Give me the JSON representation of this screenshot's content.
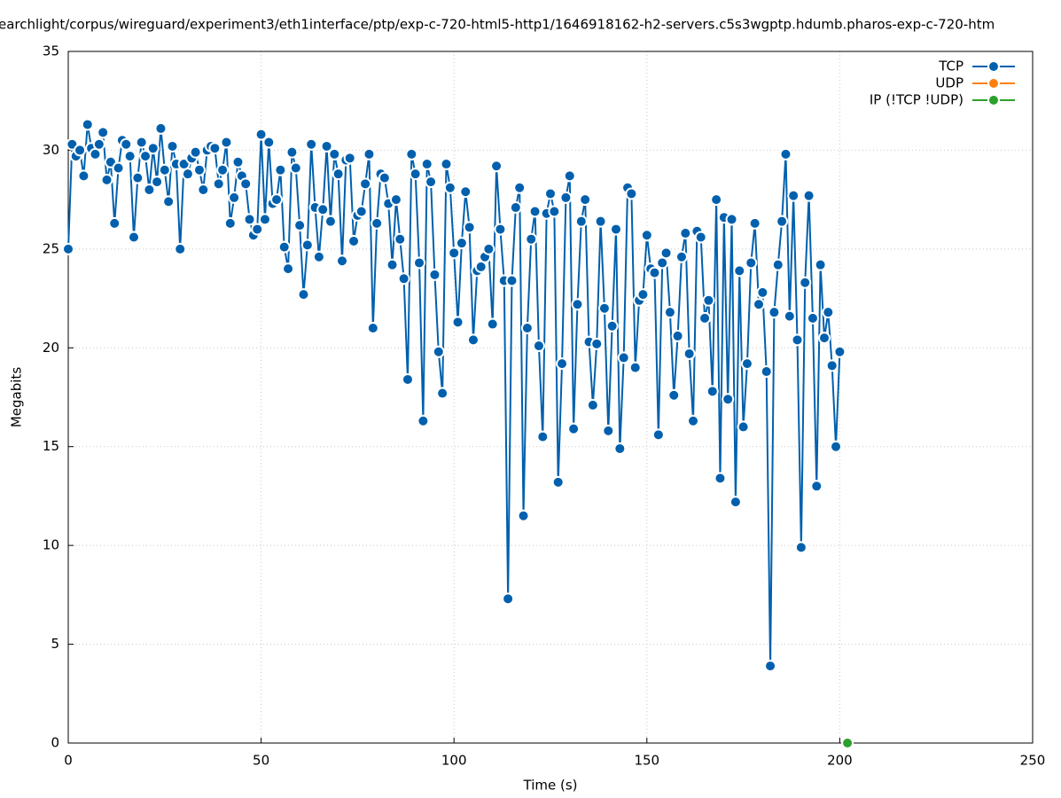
{
  "chart_data": {
    "type": "line",
    "title": "earchlight/corpus/wireguard/experiment3/eth1interface/ptp/exp-c-720-html5-http1/1646918162-h2-servers.c5s3wgptp.hdumb.pharos-exp-c-720-htm",
    "xlabel": "Time (s)",
    "ylabel": "Megabits",
    "xlim": [
      0,
      250
    ],
    "xticks": [
      0,
      50,
      100,
      150,
      200,
      250
    ],
    "ylim": [
      0,
      35
    ],
    "yticks": [
      0,
      5,
      10,
      15,
      20,
      25,
      30,
      35
    ],
    "grid": true,
    "legend": "top-right",
    "series": [
      {
        "name": "TCP",
        "color": "#0060ad",
        "x": [
          0,
          1,
          2,
          3,
          4,
          5,
          6,
          7,
          8,
          9,
          10,
          11,
          12,
          13,
          14,
          15,
          16,
          17,
          18,
          19,
          20,
          21,
          22,
          23,
          24,
          25,
          26,
          27,
          28,
          29,
          30,
          31,
          32,
          33,
          34,
          35,
          36,
          37,
          38,
          39,
          40,
          41,
          42,
          43,
          44,
          45,
          46,
          47,
          48,
          49,
          50,
          51,
          52,
          53,
          54,
          55,
          56,
          57,
          58,
          59,
          60,
          61,
          62,
          63,
          64,
          65,
          66,
          67,
          68,
          69,
          70,
          71,
          72,
          73,
          74,
          75,
          76,
          77,
          78,
          79,
          80,
          81,
          82,
          83,
          84,
          85,
          86,
          87,
          88,
          89,
          90,
          91,
          92,
          93,
          94,
          95,
          96,
          97,
          98,
          99,
          100,
          101,
          102,
          103,
          104,
          105,
          106,
          107,
          108,
          109,
          110,
          111,
          112,
          113,
          114,
          115,
          116,
          117,
          118,
          119,
          120,
          121,
          122,
          123,
          124,
          125,
          126,
          127,
          128,
          129,
          130,
          131,
          132,
          133,
          134,
          135,
          136,
          137,
          138,
          139,
          140,
          141,
          142,
          143,
          144,
          145,
          146,
          147,
          148,
          149,
          150,
          151,
          152,
          153,
          154,
          155,
          156,
          157,
          158,
          159,
          160,
          161,
          162,
          163,
          164,
          165,
          166,
          167,
          168,
          169,
          170,
          171,
          172,
          173,
          174,
          175,
          176,
          177,
          178,
          179,
          180,
          181,
          182,
          183,
          184,
          185,
          186,
          187,
          188,
          189,
          190,
          191,
          192,
          193,
          194,
          195,
          196,
          197,
          198,
          199,
          200
        ],
        "values": [
          25.0,
          30.3,
          29.7,
          30.0,
          28.7,
          31.3,
          30.1,
          29.8,
          30.3,
          30.9,
          28.5,
          29.4,
          26.3,
          29.1,
          30.5,
          30.3,
          29.7,
          25.6,
          28.6,
          30.4,
          29.7,
          28.0,
          30.1,
          28.4,
          31.1,
          29.0,
          27.4,
          30.2,
          29.3,
          25.0,
          29.3,
          28.8,
          29.6,
          29.9,
          29.0,
          28.0,
          30.0,
          30.2,
          30.1,
          28.3,
          29.0,
          30.4,
          26.3,
          27.6,
          29.4,
          28.7,
          28.3,
          26.5,
          25.7,
          26.0,
          30.8,
          26.5,
          30.4,
          27.3,
          27.5,
          29.0,
          25.1,
          24.0,
          29.9,
          29.1,
          26.2,
          22.7,
          25.2,
          30.3,
          27.1,
          24.6,
          27.0,
          30.2,
          26.4,
          29.8,
          28.8,
          24.4,
          29.5,
          29.6,
          25.4,
          26.7,
          26.9,
          28.3,
          29.8,
          21.0,
          26.3,
          28.8,
          28.6,
          27.3,
          24.2,
          27.5,
          25.5,
          23.5,
          18.4,
          29.8,
          28.8,
          24.3,
          16.3,
          29.3,
          28.4,
          23.7,
          19.8,
          17.7,
          29.3,
          28.1,
          24.8,
          21.3,
          25.3,
          27.9,
          26.1,
          20.4,
          23.9,
          24.1,
          24.6,
          25.0,
          21.2,
          29.2,
          26.0,
          23.4,
          7.3,
          23.4,
          27.1,
          28.1,
          11.5,
          21.0,
          25.5,
          26.9,
          20.1,
          15.5,
          26.8,
          27.8,
          26.9,
          13.2,
          19.2,
          27.6,
          28.7,
          15.9,
          22.2,
          26.4,
          27.5,
          20.3,
          17.1,
          20.2,
          26.4,
          22.0,
          15.8,
          21.1,
          26.0,
          14.9,
          19.5,
          28.1,
          27.8,
          19.0,
          22.4,
          22.7,
          25.7,
          24.0,
          23.8,
          15.6,
          24.3,
          24.8,
          21.8,
          17.6,
          20.6,
          24.6,
          25.8,
          19.7,
          16.3,
          25.9,
          25.6,
          21.5,
          22.4,
          17.8,
          27.5,
          13.4,
          26.6,
          17.4,
          26.5,
          12.2,
          23.9,
          16.0,
          19.2,
          24.3,
          26.3,
          22.2,
          22.8,
          18.8,
          3.9,
          21.8,
          24.2,
          26.4,
          29.8,
          21.6,
          27.7,
          20.4,
          9.9,
          23.3,
          27.7,
          21.5,
          13.0,
          24.2,
          20.5,
          21.8,
          19.1,
          15.0,
          19.8
        ]
      },
      {
        "name": "UDP",
        "color": "#ff7f0e",
        "x": [],
        "values": []
      },
      {
        "name": "IP (!TCP  !UDP)",
        "color": "#2ca02c",
        "x": [
          202
        ],
        "values": [
          0
        ]
      }
    ]
  }
}
